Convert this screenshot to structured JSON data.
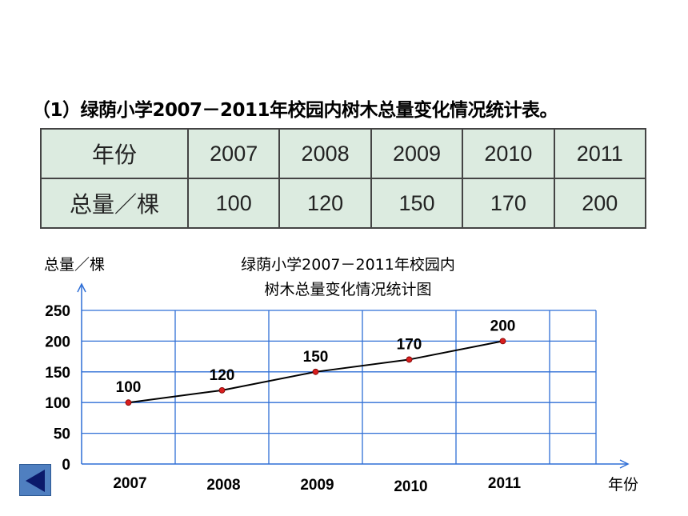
{
  "heading": "（1）绿荫小学2007－2011年校园内树木总量变化情况统计表。",
  "table": {
    "row_header_year": "年份",
    "row_header_total": "总量／棵",
    "years": [
      "2007",
      "2008",
      "2009",
      "2010",
      "2011"
    ],
    "totals": [
      "100",
      "120",
      "150",
      "170",
      "200"
    ]
  },
  "chart_data": {
    "type": "line",
    "title_line1": "绿荫小学2007－2011年校园内",
    "title_line2": "树木总量变化情况统计图",
    "ylabel": "总量／棵",
    "xlabel": "年份",
    "categories": [
      "2007",
      "2008",
      "2009",
      "2010",
      "2011"
    ],
    "values": [
      100,
      120,
      150,
      170,
      200
    ],
    "data_labels": [
      "100",
      "120",
      "150",
      "170",
      "200"
    ],
    "y_ticks": [
      "0",
      "50",
      "100",
      "150",
      "200",
      "250"
    ],
    "ylim": [
      0,
      250
    ],
    "grid": true,
    "line_color": "#000000",
    "point_color": "#d81e1e",
    "grid_color": "#2f6fd6"
  },
  "nav": {
    "back_icon": "left-triangle-icon"
  }
}
